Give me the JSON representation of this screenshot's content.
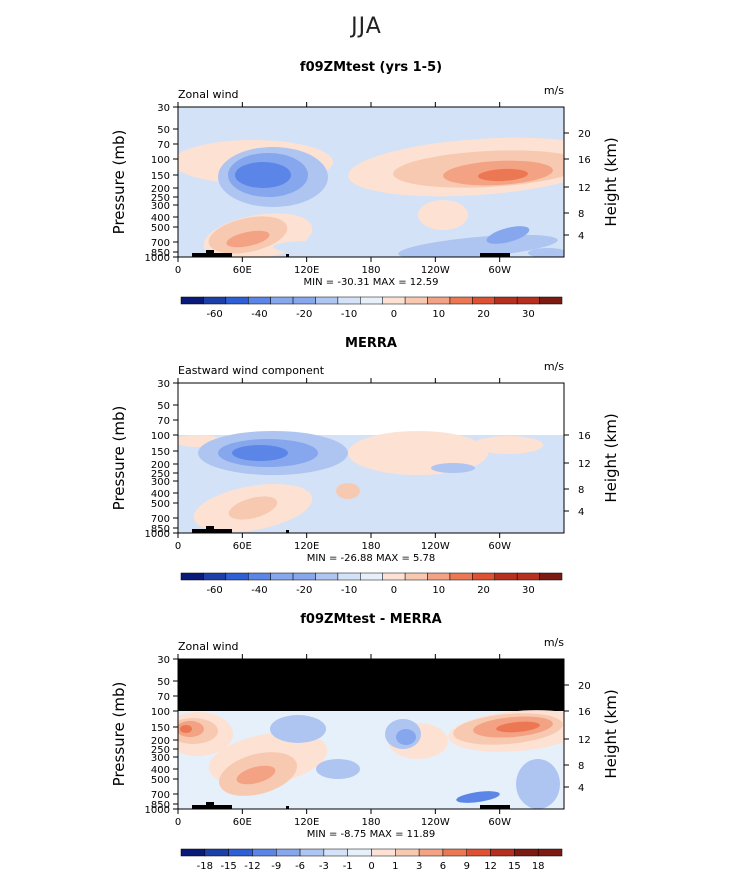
{
  "title": "JJA",
  "x_ticks": [
    "0",
    "60E",
    "120E",
    "180",
    "120W",
    "60W"
  ],
  "panels": [
    {
      "title": "f09ZMtest (yrs 1-5)",
      "left_label": "Zonal wind",
      "units": "m/s",
      "stats": "MIN = -30.31   MAX = 12.59",
      "ylabel": "Pressure (mb)",
      "ylabel_right": "Height (km)",
      "pressure_ticks": [
        "30",
        "50",
        "70",
        "100",
        "150",
        "200",
        "250",
        "300",
        "400",
        "500",
        "700",
        "850",
        "1000"
      ],
      "height_ticks": [
        "20",
        "16",
        "12",
        "8",
        "4"
      ],
      "colorbar_labels": [
        "-60",
        "-40",
        "-20",
        "-10",
        "0",
        "10",
        "20",
        "30"
      ]
    },
    {
      "title": "MERRA",
      "left_label": "Eastward wind component",
      "units": "m/s",
      "stats": "MIN = -26.88   MAX =   5.78",
      "ylabel": "Pressure (mb)",
      "ylabel_right": "Height (km)",
      "pressure_ticks": [
        "30",
        "50",
        "70",
        "100",
        "150",
        "200",
        "250",
        "300",
        "400",
        "500",
        "700",
        "850",
        "1000"
      ],
      "height_ticks": [
        "16",
        "12",
        "8",
        "4"
      ],
      "colorbar_labels": [
        "-60",
        "-40",
        "-20",
        "-10",
        "0",
        "10",
        "20",
        "30"
      ]
    },
    {
      "title": "f09ZMtest - MERRA",
      "left_label": "Zonal wind",
      "units": "m/s",
      "stats": "MIN = -8.75   MAX = 11.89",
      "ylabel": "Pressure (mb)",
      "ylabel_right": "Height (km)",
      "pressure_ticks": [
        "30",
        "50",
        "70",
        "100",
        "150",
        "200",
        "250",
        "300",
        "400",
        "500",
        "700",
        "850",
        "1000"
      ],
      "height_ticks": [
        "20",
        "16",
        "12",
        "8",
        "4"
      ],
      "colorbar_labels": [
        "-18",
        "-15",
        "-12",
        "-9",
        "-6",
        "-3",
        "-1",
        "0",
        "1",
        "3",
        "6",
        "9",
        "12",
        "15",
        "18"
      ]
    }
  ],
  "chart_data": [
    {
      "type": "heatmap",
      "title": "f09ZMtest (yrs 1-5)",
      "variable": "Zonal wind",
      "units": "m/s",
      "x": [
        "0",
        "60E",
        "120E",
        "180",
        "120W",
        "60W"
      ],
      "xlim": [
        0,
        360
      ],
      "ylabel": "Pressure (mb)",
      "y_pressure_levels": [
        30,
        50,
        70,
        100,
        150,
        200,
        250,
        300,
        400,
        500,
        700,
        850,
        1000
      ],
      "y_height_km": [
        20,
        16,
        12,
        8,
        4
      ],
      "min": -30.31,
      "max": 12.59,
      "contour_levels": [
        -70,
        -60,
        -50,
        -40,
        -30,
        -20,
        -15,
        -10,
        -5,
        0,
        5,
        10,
        15,
        20,
        25,
        30,
        35
      ],
      "features": [
        {
          "kind": "easterly jet core",
          "lon_center": 75,
          "pressure_mb": 150,
          "value": -30
        },
        {
          "kind": "westerly jet core",
          "lon_center": 310,
          "pressure_mb": 150,
          "value": 12
        }
      ]
    },
    {
      "type": "heatmap",
      "title": "MERRA",
      "variable": "Eastward wind component",
      "units": "m/s",
      "x": [
        "0",
        "60E",
        "120E",
        "180",
        "120W",
        "60W"
      ],
      "xlim": [
        0,
        360
      ],
      "ylabel": "Pressure (mb)",
      "y_pressure_levels": [
        100,
        150,
        200,
        250,
        300,
        400,
        500,
        700,
        850,
        1000
      ],
      "y_height_km": [
        16,
        12,
        8,
        4
      ],
      "min": -26.88,
      "max": 5.78,
      "contour_levels": [
        -70,
        -60,
        -50,
        -40,
        -30,
        -20,
        -15,
        -10,
        -5,
        0,
        5,
        10,
        15,
        20,
        25,
        30,
        35
      ],
      "features": [
        {
          "kind": "easterly jet core",
          "lon_center": 80,
          "pressure_mb": 150,
          "value": -26
        }
      ]
    },
    {
      "type": "heatmap",
      "title": "f09ZMtest - MERRA",
      "variable": "Zonal wind",
      "units": "m/s",
      "x": [
        "0",
        "60E",
        "120E",
        "180",
        "120W",
        "60W"
      ],
      "xlim": [
        0,
        360
      ],
      "ylabel": "Pressure (mb)",
      "y_pressure_levels": [
        30,
        50,
        70,
        100,
        150,
        200,
        250,
        300,
        400,
        500,
        700,
        850,
        1000
      ],
      "y_height_km": [
        20,
        16,
        12,
        8,
        4
      ],
      "min": -8.75,
      "max": 11.89,
      "contour_levels": [
        -18,
        -15,
        -12,
        -9,
        -6,
        -3,
        -1,
        0,
        1,
        3,
        6,
        9,
        12,
        15,
        18
      ],
      "features": [
        {
          "kind": "positive difference",
          "lon_center": 10,
          "pressure_mb": 150,
          "value": 9
        },
        {
          "kind": "positive difference",
          "lon_center": 300,
          "pressure_mb": 150,
          "value": 11
        },
        {
          "kind": "negative difference",
          "lon_center": 220,
          "pressure_mb": 200,
          "value": -6
        }
      ]
    }
  ],
  "colors": {
    "scale": [
      "#0a1a78",
      "#1d3fa8",
      "#2f5fd6",
      "#5b86e8",
      "#86a6ee",
      "#aec4f1",
      "#d3e2f6",
      "#e6f0fb",
      "#fde2d3",
      "#f8c9b1",
      "#f3a283",
      "#ec7853",
      "#de5133",
      "#b7301f",
      "#7c1b12"
    ],
    "missing": "#000000"
  }
}
